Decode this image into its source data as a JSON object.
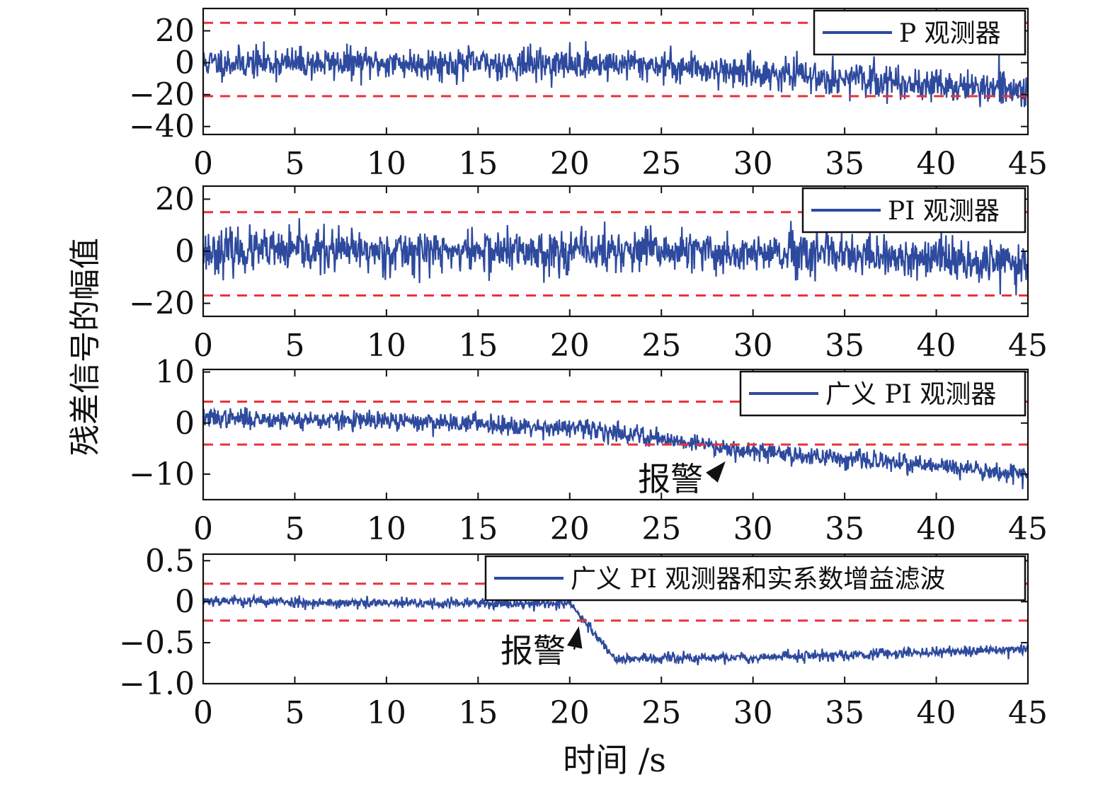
{
  "figure": {
    "ylabel": "残差信号的幅值",
    "xlabel": "时间 /s"
  },
  "colors": {
    "series": "#2e4a9e",
    "threshold": "#e8333a",
    "axis": "#111111"
  },
  "chart_data": [
    {
      "type": "line",
      "legend": "P 观测器",
      "legend_position": "top-right",
      "xlim": [
        0,
        45
      ],
      "ylim": [
        -45,
        34
      ],
      "xticks": [
        0,
        5,
        10,
        15,
        20,
        25,
        30,
        35,
        40,
        45
      ],
      "xtick_labels": [
        "0",
        "5",
        "10",
        "15",
        "20",
        "25",
        "30",
        "35",
        "40",
        "45"
      ],
      "yticks": [
        20,
        0,
        -20,
        -40
      ],
      "ytick_labels": [
        "20",
        "0",
        "−20",
        "−40"
      ],
      "thresholds": [
        25,
        -21
      ],
      "trend": [
        [
          0,
          0
        ],
        [
          24,
          -1
        ],
        [
          30,
          -6
        ],
        [
          45,
          -18
        ]
      ],
      "noise": 9,
      "points": 1400,
      "seed": 11,
      "annotation": null
    },
    {
      "type": "line",
      "legend": "PI 观测器",
      "legend_position": "top-right",
      "xlim": [
        0,
        45
      ],
      "ylim": [
        -25,
        25
      ],
      "xticks": [
        0,
        5,
        10,
        15,
        20,
        25,
        30,
        35,
        40,
        45
      ],
      "xtick_labels": [
        "0",
        "5",
        "10",
        "15",
        "20",
        "25",
        "30",
        "35",
        "40",
        "45"
      ],
      "yticks": [
        20,
        0,
        -20
      ],
      "ytick_labels": [
        "20",
        "0",
        "−20"
      ],
      "thresholds": [
        15,
        -17
      ],
      "trend": [
        [
          0,
          0
        ],
        [
          25,
          0
        ],
        [
          45,
          -4
        ]
      ],
      "noise": 7.5,
      "points": 1400,
      "seed": 23,
      "annotation": null
    },
    {
      "type": "line",
      "legend": "广义 PI 观测器",
      "legend_position": "top-right",
      "xlim": [
        0,
        45
      ],
      "ylim": [
        -15,
        10.5
      ],
      "xticks": [
        0,
        5,
        10,
        15,
        20,
        25,
        30,
        35,
        40,
        45
      ],
      "xtick_labels": [
        "0",
        "5",
        "10",
        "15",
        "20",
        "25",
        "30",
        "35",
        "40",
        "45"
      ],
      "yticks": [
        10,
        0,
        -10
      ],
      "ytick_labels": [
        "10",
        "0",
        "−10"
      ],
      "thresholds": [
        4.2,
        -4.2
      ],
      "trend": [
        [
          0,
          1
        ],
        [
          15,
          0
        ],
        [
          22,
          -1.5
        ],
        [
          30,
          -5.5
        ],
        [
          45,
          -10
        ]
      ],
      "noise": 1.7,
      "points": 1400,
      "seed": 37,
      "annotation": {
        "text": "报警",
        "text_x": 25.5,
        "text_y": -11,
        "arrow_to_x": 28.5,
        "arrow_to_y": -7.5
      }
    },
    {
      "type": "line",
      "legend": "广义 PI 观测器和实系数增益滤波",
      "legend_position": "top-right",
      "xlim": [
        0,
        45
      ],
      "ylim": [
        -1.0,
        0.58
      ],
      "xticks": [
        0,
        5,
        10,
        15,
        20,
        25,
        30,
        35,
        40,
        45
      ],
      "xtick_labels": [
        "0",
        "5",
        "10",
        "15",
        "20",
        "25",
        "30",
        "35",
        "40",
        "45"
      ],
      "yticks": [
        0.5,
        0,
        -0.5,
        -1.0
      ],
      "ytick_labels": [
        "0.5",
        "0",
        "−0.5",
        "−1.0"
      ],
      "thresholds": [
        0.22,
        -0.23
      ],
      "trend": [
        [
          0,
          0.02
        ],
        [
          8,
          -0.02
        ],
        [
          20,
          -0.02
        ],
        [
          22.5,
          -0.7
        ],
        [
          30,
          -0.68
        ],
        [
          45,
          -0.58
        ]
      ],
      "noise": 0.06,
      "points": 1400,
      "seed": 53,
      "annotation": {
        "text": "报警",
        "text_x": 18,
        "text_y": -0.6,
        "arrow_to_x": 20.5,
        "arrow_to_y": -0.3
      }
    }
  ]
}
